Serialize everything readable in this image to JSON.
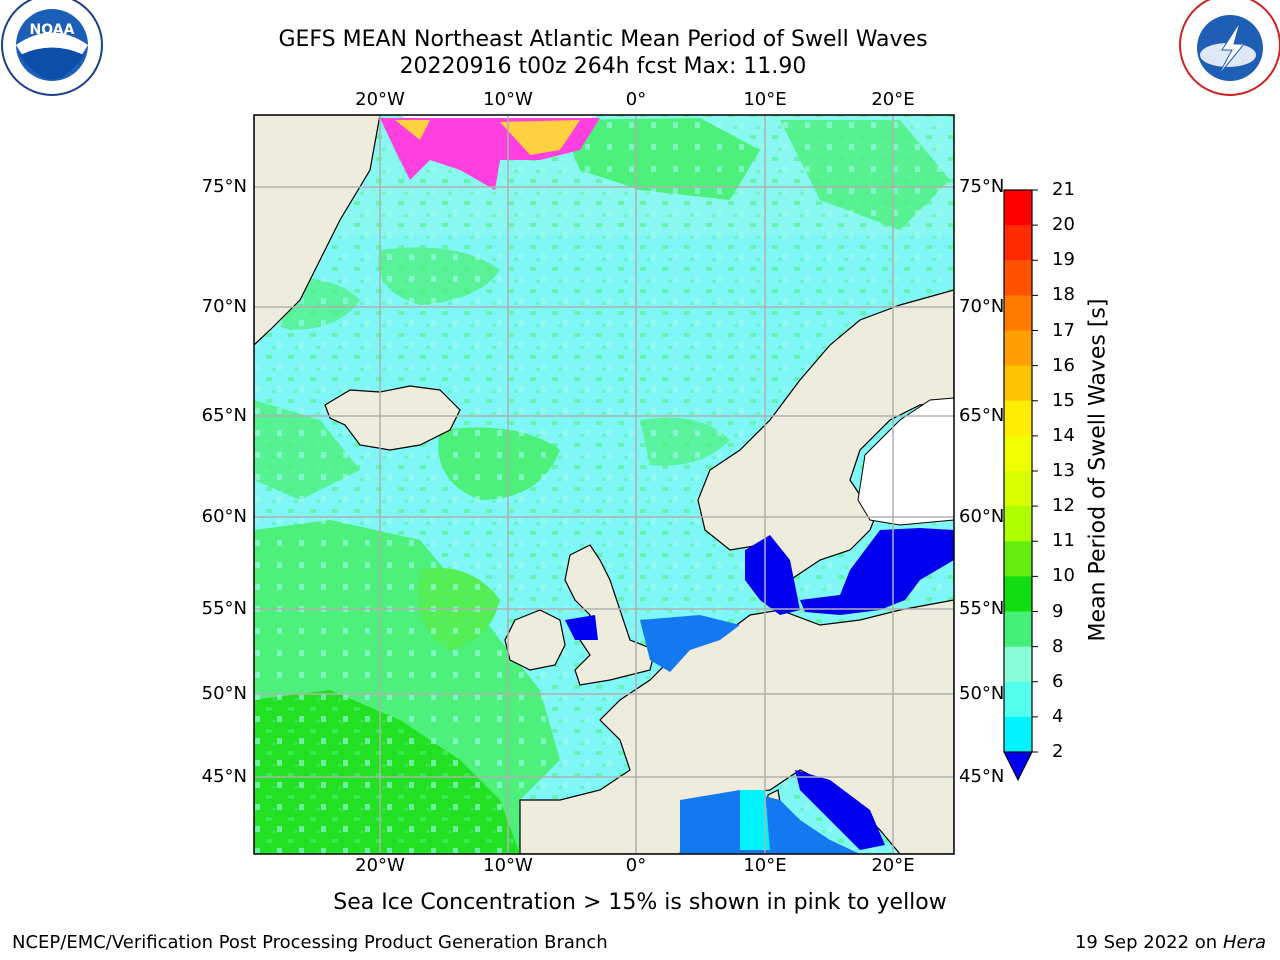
{
  "title": {
    "line1": "GEFS MEAN Northeast Atlantic Mean Period of Swell Waves",
    "line2": "20220916 t00z 264h fcst   Max: 11.90"
  },
  "map": {
    "lon_labels": [
      "20°W",
      "10°W",
      "0°",
      "10°E",
      "20°E"
    ],
    "lat_labels": [
      "75°N",
      "70°N",
      "65°N",
      "60°N",
      "55°N",
      "50°N",
      "45°N"
    ],
    "colors": {
      "land": "#eeecdc",
      "ocean_cyan": "#7ff7f7",
      "ocean_green": "#4cf07a",
      "bright_green": "#22e022",
      "blue": "#0000ee",
      "mid_blue": "#1478f0",
      "ice_pink": "#ff40e0",
      "ice_yellow": "#ffd040",
      "grid": "#b0b0b0"
    }
  },
  "colorbar": {
    "title": "Mean Period of Swell Waves [s]",
    "ticks": [
      "21",
      "20",
      "19",
      "18",
      "17",
      "16",
      "15",
      "14",
      "13",
      "12",
      "11",
      "10",
      "9",
      "8",
      "6",
      "4",
      "2"
    ],
    "colors": [
      "#ff0000",
      "#ff2a00",
      "#ff5200",
      "#ff7a00",
      "#ffa000",
      "#ffc400",
      "#ffee00",
      "#f0ff00",
      "#d8ff00",
      "#b0ff00",
      "#66ee11",
      "#11dd11",
      "#44ee77",
      "#88ffd8",
      "#55ffee",
      "#00f4ff",
      "#00aaff",
      "#1e6eff"
    ],
    "under_color": "#0000ee"
  },
  "logos": {
    "noaa": "NOAA",
    "noaa_ring": "NATIONAL OCEANIC AND ATMOSPHERIC ADMINISTRATION · U.S. DEPARTMENT OF COMMERCE",
    "nws_ring": "NATIONAL WEATHER SERVICE"
  },
  "footer": {
    "note": "Sea Ice Concentration > 15% is shown in pink to yellow",
    "credit": "NCEP/EMC/Verification Post Processing Product Generation Branch",
    "date": "19 Sep 2022 on",
    "host": "Hera"
  }
}
